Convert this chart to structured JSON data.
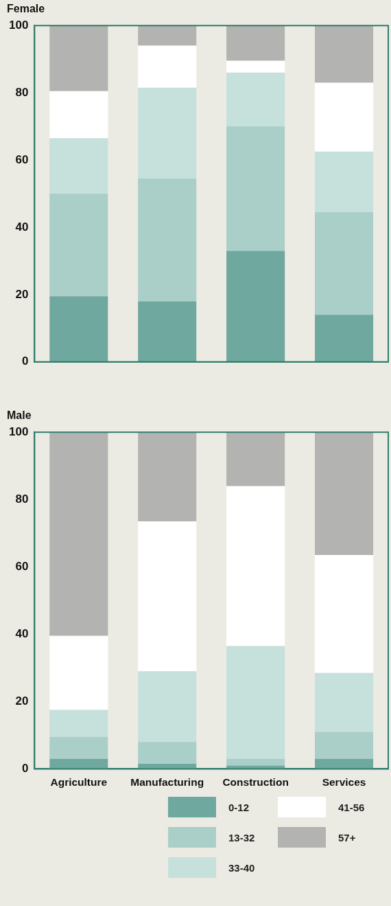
{
  "chart_data": [
    {
      "type": "bar",
      "title": "Female",
      "categories": [
        null,
        null,
        null,
        null
      ],
      "stacked": true,
      "ylim": [
        0,
        100
      ],
      "yticks": [
        0,
        20,
        40,
        60,
        80,
        100
      ],
      "grid": false,
      "legend": false,
      "tick_labels": "y",
      "series": [
        {
          "color": "#6fa89e",
          "values": [
            19.5,
            18,
            33,
            14
          ]
        },
        {
          "color": "#a9cfc8",
          "values": [
            30.5,
            36.5,
            37,
            30.5
          ]
        },
        {
          "color": "#c6e0dc",
          "values": [
            16.5,
            27,
            16,
            18
          ]
        },
        {
          "color": "#ffffff",
          "values": [
            14,
            12.5,
            3.5,
            20.5
          ]
        },
        {
          "color": "#b3b3b1",
          "values": [
            19.5,
            6,
            10.5,
            17
          ]
        }
      ]
    },
    {
      "type": "bar",
      "title": "Male",
      "categories": [
        "Agriculture",
        "Manufacturing",
        "Construction",
        "Services"
      ],
      "stacked": true,
      "ylim": [
        0,
        100
      ],
      "yticks": [
        0,
        20,
        40,
        60,
        80,
        100
      ],
      "grid": false,
      "legend": "bottom",
      "series": [
        {
          "name": "0-12",
          "color": "#6fa89e",
          "values": [
            3,
            1.5,
            1,
            3
          ]
        },
        {
          "name": "13-32",
          "color": "#a9cfc8",
          "values": [
            6.5,
            6.5,
            2,
            8
          ]
        },
        {
          "name": "33-40",
          "color": "#c6e0dc",
          "values": [
            8,
            21,
            33.5,
            17.5
          ]
        },
        {
          "name": "41-56",
          "color": "#ffffff",
          "values": [
            22,
            44.5,
            47.5,
            35
          ]
        },
        {
          "name": "57+",
          "color": "#b3b3b1",
          "values": [
            60.5,
            26.5,
            16,
            36.5
          ]
        }
      ]
    }
  ]
}
